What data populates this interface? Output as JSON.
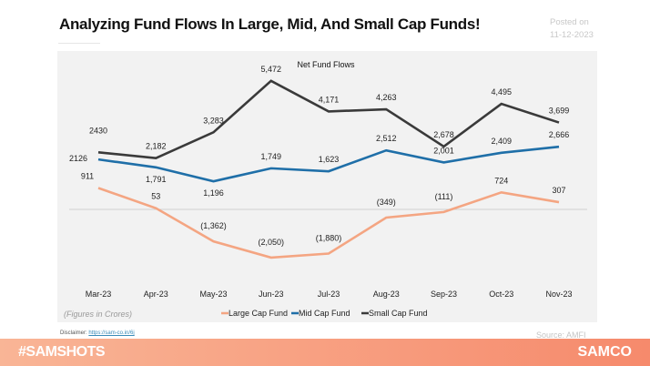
{
  "header": {
    "title": "Analyzing Fund Flows In Large, Mid, And Small Cap Funds!",
    "posted_label": "Posted on",
    "posted_date": "11-12-2023"
  },
  "footer": {
    "disclaimer_label": "Disclaimer:",
    "disclaimer_link": "https://sam-co.in/6j",
    "source": "Source: AMFI",
    "hashtag": "#SAMSHOTS",
    "brand": "SAMCO"
  },
  "chart_data": {
    "type": "line",
    "title": "Net Fund Flows",
    "note": "(Figures in Crores)",
    "categories": [
      "Mar-23",
      "Apr-23",
      "May-23",
      "Jun-23",
      "Jul-23",
      "Aug-23",
      "Sep-23",
      "Oct-23",
      "Nov-23"
    ],
    "series": [
      {
        "name": "Large Cap Fund",
        "color": "#f4a582",
        "values": [
          911,
          53,
          -1362,
          -2050,
          -1880,
          -349,
          -111,
          724,
          307
        ],
        "labels": [
          "911",
          "53",
          "(1,362)",
          "(2,050)",
          "(1,880)",
          "(349)",
          "(111)",
          "724",
          "307"
        ]
      },
      {
        "name": "Mid Cap Fund",
        "color": "#1f6fa8",
        "values": [
          2126,
          1791,
          1196,
          1749,
          1623,
          2512,
          2001,
          2409,
          2666
        ],
        "labels": [
          "2126",
          "1,791",
          "1,196",
          "1,749",
          "1,623",
          "2,512",
          "2,001",
          "2,409",
          "2,666"
        ]
      },
      {
        "name": "Small Cap Fund",
        "color": "#3a3a3a",
        "values": [
          2430,
          2182,
          3283,
          5472,
          4171,
          4263,
          2678,
          4495,
          3699
        ],
        "labels": [
          "2430",
          "2,182",
          "3,283",
          "5,472",
          "4,171",
          "4,263",
          "2,678",
          "4,495",
          "3,699"
        ]
      }
    ],
    "grid": false,
    "legend": "bottom"
  }
}
